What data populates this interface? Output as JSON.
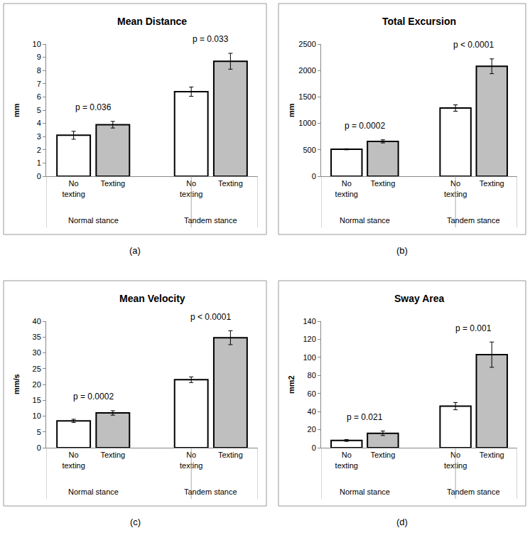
{
  "chart_data": [
    {
      "type": "bar",
      "title": "Mean Distance",
      "y_label": "mm",
      "panel_label": "(a)",
      "categories": [
        "Normal stance",
        "Tandem stance"
      ],
      "annotations": [
        "p = 0.036",
        "p = 0.033"
      ],
      "series": [
        {
          "name": "No texting",
          "color": "#ffffff",
          "values": [
            3.1,
            6.4
          ],
          "error": [
            0.3,
            0.35
          ]
        },
        {
          "name": "Texting",
          "color": "#bfbfbf",
          "values": [
            3.9,
            8.7
          ],
          "error": [
            0.25,
            0.6
          ]
        }
      ],
      "ylim": [
        0,
        10
      ],
      "yticks": [
        0,
        1,
        2,
        3,
        4,
        5,
        6,
        7,
        8,
        9,
        10
      ],
      "grid": false
    },
    {
      "type": "bar",
      "title": "Total Excursion",
      "y_label": "mm",
      "panel_label": "(b)",
      "categories": [
        "Normal stance",
        "Tandem stance"
      ],
      "annotations": [
        "p = 0.0002",
        "p < 0.0001"
      ],
      "series": [
        {
          "name": "No texting",
          "color": "#ffffff",
          "values": [
            510,
            1290
          ],
          "error": [
            10,
            60
          ]
        },
        {
          "name": "Texting",
          "color": "#bfbfbf",
          "values": [
            660,
            2080
          ],
          "error": [
            30,
            140
          ]
        }
      ],
      "ylim": [
        0,
        2500
      ],
      "yticks": [
        0,
        500,
        1000,
        1500,
        2000,
        2500
      ],
      "grid": false
    },
    {
      "type": "bar",
      "title": "Mean Velocity",
      "y_label": "mm/s",
      "panel_label": "(c)",
      "categories": [
        "Normal stance",
        "Tandem stance"
      ],
      "annotations": [
        "p = 0.0002",
        "p < 0.0001"
      ],
      "series": [
        {
          "name": "No texting",
          "color": "#ffffff",
          "values": [
            8.5,
            21.5
          ],
          "error": [
            0.5,
            0.9
          ]
        },
        {
          "name": "Texting",
          "color": "#bfbfbf",
          "values": [
            11,
            34.8
          ],
          "error": [
            0.7,
            2.2
          ]
        }
      ],
      "ylim": [
        0,
        40
      ],
      "yticks": [
        0,
        5,
        10,
        15,
        20,
        25,
        30,
        35,
        40
      ],
      "grid": false
    },
    {
      "type": "bar",
      "title": "Sway Area",
      "y_label": "mm2",
      "panel_label": "(d)",
      "categories": [
        "Normal stance",
        "Tandem stance"
      ],
      "annotations": [
        "p = 0.021",
        "p = 0.001"
      ],
      "series": [
        {
          "name": "No texting",
          "color": "#ffffff",
          "values": [
            8,
            46
          ],
          "error": [
            1,
            4
          ]
        },
        {
          "name": "Texting",
          "color": "#bfbfbf",
          "values": [
            16,
            103
          ],
          "error": [
            2.5,
            14
          ]
        }
      ],
      "ylim": [
        0,
        140
      ],
      "yticks": [
        0,
        20,
        40,
        60,
        80,
        100,
        120,
        140
      ],
      "grid": false
    }
  ]
}
